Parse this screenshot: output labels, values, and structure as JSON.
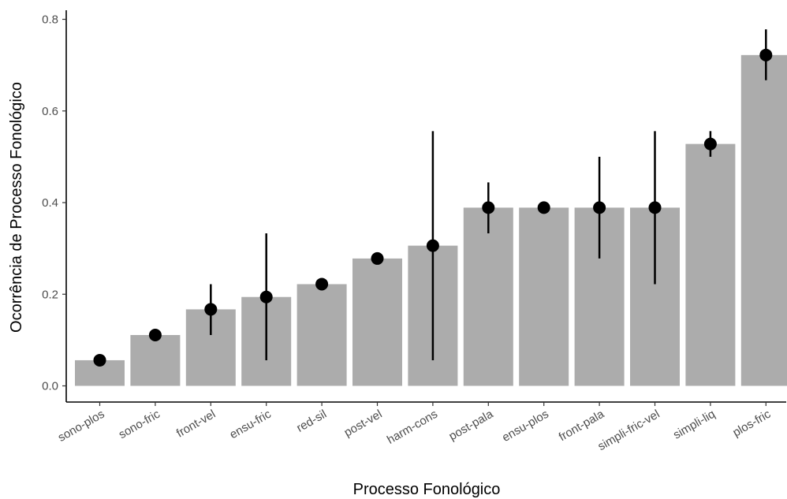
{
  "chart_data": {
    "type": "bar",
    "title": "",
    "xlabel": "Processo Fonológico",
    "ylabel": "Ocorrência de Processo Fonológico",
    "ylim": [
      0,
      0.8
    ],
    "yticks": [
      0.0,
      0.2,
      0.4,
      0.6,
      0.8
    ],
    "ytick_labels": [
      "0.0",
      "0.2",
      "0.4",
      "0.6",
      "0.8"
    ],
    "grid": false,
    "categories": [
      "sono-plos",
      "sono-fric",
      "front-vel",
      "ensu-fric",
      "red-sil",
      "post-vel",
      "harm-cons",
      "post-pala",
      "ensu-plos",
      "front-pala",
      "simpli-fric-vel",
      "simpli-liq",
      "plos-fric"
    ],
    "values": [
      0.056,
      0.111,
      0.167,
      0.194,
      0.222,
      0.278,
      0.306,
      0.389,
      0.389,
      0.389,
      0.389,
      0.528,
      0.722
    ],
    "error_low": [
      0.056,
      0.111,
      0.111,
      0.056,
      0.222,
      0.278,
      0.056,
      0.333,
      0.389,
      0.278,
      0.222,
      0.5,
      0.667
    ],
    "error_high": [
      0.056,
      0.111,
      0.222,
      0.333,
      0.222,
      0.278,
      0.556,
      0.444,
      0.389,
      0.5,
      0.556,
      0.556,
      0.778
    ],
    "colors": {
      "bar": "#acacac",
      "point": "#000000",
      "errorbar": "#000000",
      "axis": "#000000"
    }
  }
}
